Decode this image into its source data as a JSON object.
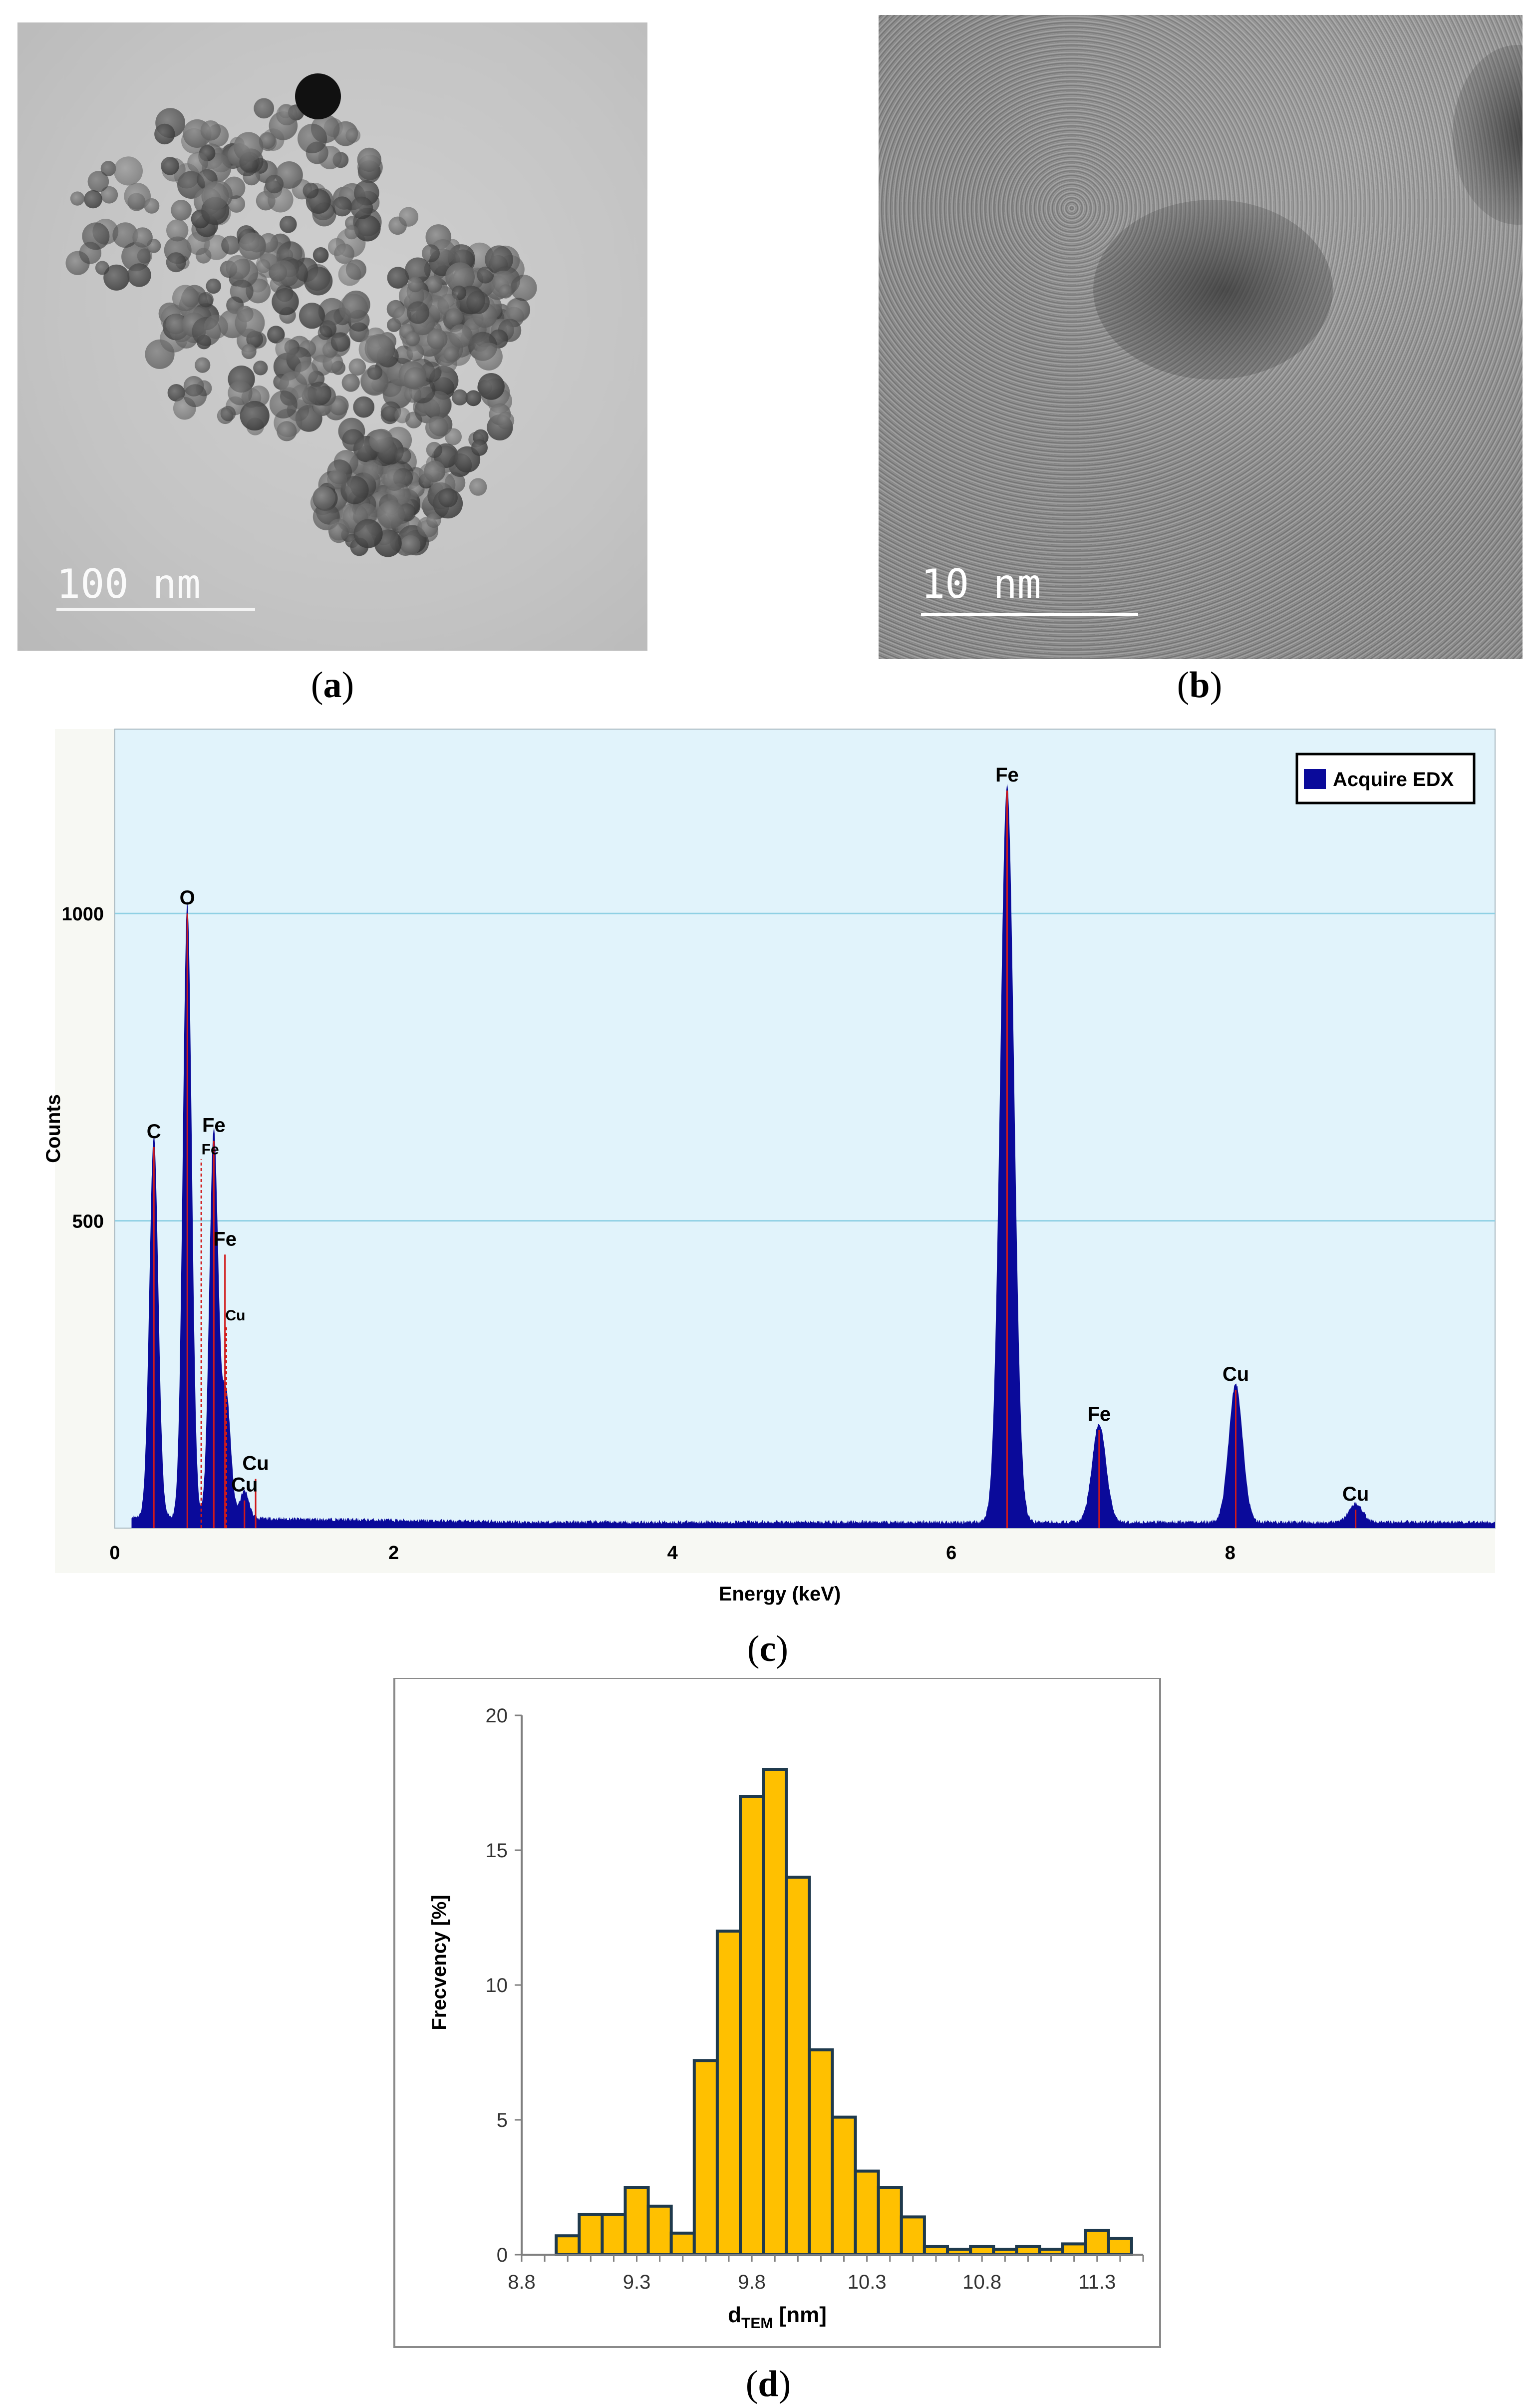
{
  "panel_a": {
    "caption_open": "(",
    "caption_letter": "a",
    "caption_close": ")",
    "scale_label": "100 nm"
  },
  "panel_b": {
    "caption_open": "(",
    "caption_letter": "b",
    "caption_close": ")",
    "scale_label": "10 nm"
  },
  "panel_c": {
    "caption_open": "(",
    "caption_letter": "c",
    "caption_close": ")"
  },
  "panel_d": {
    "caption_open": "(",
    "caption_letter": "d",
    "caption_close": ")"
  },
  "colors": {
    "edx_fill": "#0a0a9a",
    "edx_bg": "#e1f3fb",
    "edx_grid": "#8fd0e4",
    "edx_marker": "#d11a1a",
    "hist_fill": "#ffc000",
    "hist_edge": "#1f3a4d"
  },
  "chart_data": [
    {
      "type": "area",
      "title": "",
      "xlabel": "Energy (keV)",
      "ylabel": "Counts",
      "xlim": [
        0,
        9.9
      ],
      "ylim": [
        0,
        1300
      ],
      "x_ticks": [
        0,
        2,
        4,
        6,
        8
      ],
      "y_ticks": [
        500,
        1000
      ],
      "grid": "horizontal",
      "legend": {
        "position": "top-right",
        "entries": [
          "Acquire EDX"
        ]
      },
      "series": [
        {
          "name": "Acquire EDX",
          "peaks": [
            {
              "x": 0.28,
              "y": 620
            },
            {
              "x": 0.52,
              "y": 1000
            },
            {
              "x": 0.71,
              "y": 630
            },
            {
              "x": 0.8,
              "y": 200
            },
            {
              "x": 0.93,
              "y": 45
            },
            {
              "x": 6.4,
              "y": 1200
            },
            {
              "x": 7.06,
              "y": 160
            },
            {
              "x": 8.04,
              "y": 225
            },
            {
              "x": 8.9,
              "y": 30
            }
          ],
          "background": 10
        }
      ],
      "annotations": [
        {
          "text": "C",
          "x": 0.28,
          "y": 620,
          "size": "large",
          "marker": true
        },
        {
          "text": "O",
          "x": 0.52,
          "y": 1000,
          "size": "large",
          "marker": true
        },
        {
          "text": "Fe",
          "x": 0.62,
          "y": 600,
          "size": "small",
          "marker": true
        },
        {
          "text": "Fe",
          "x": 0.71,
          "y": 630,
          "size": "large",
          "marker": true
        },
        {
          "text": "Fe",
          "x": 0.79,
          "y": 445,
          "size": "large",
          "marker": true
        },
        {
          "text": "Cu",
          "x": 0.8,
          "y": 330,
          "size": "small",
          "marker": true
        },
        {
          "text": "Cu",
          "x": 0.93,
          "y": 45,
          "size": "large",
          "marker": true
        },
        {
          "text": "Cu",
          "x": 1.01,
          "y": 80,
          "size": "large",
          "marker": true
        },
        {
          "text": "Fe",
          "x": 6.4,
          "y": 1200,
          "size": "large",
          "marker": true
        },
        {
          "text": "Fe",
          "x": 7.06,
          "y": 160,
          "size": "large",
          "marker": true
        },
        {
          "text": "Cu",
          "x": 8.04,
          "y": 225,
          "size": "large",
          "marker": true
        },
        {
          "text": "Cu",
          "x": 8.9,
          "y": 30,
          "size": "large",
          "marker": true
        }
      ]
    },
    {
      "type": "bar",
      "title": "",
      "xlabel": "dTEM [nm]",
      "xlabel_main": "d",
      "xlabel_sub": "TEM",
      "xlabel_unit": " [nm]",
      "ylabel": "Frecvency [%]",
      "xlim": [
        8.8,
        11.5
      ],
      "ylim": [
        0,
        20
      ],
      "x_ticks": [
        8.8,
        9.3,
        9.8,
        10.3,
        10.8,
        11.3
      ],
      "y_ticks": [
        0,
        5,
        10,
        15,
        20
      ],
      "bin_width": 0.1,
      "x": [
        9.0,
        9.1,
        9.2,
        9.3,
        9.4,
        9.5,
        9.6,
        9.7,
        9.8,
        9.9,
        10.0,
        10.1,
        10.2,
        10.3,
        10.4,
        10.5,
        10.6,
        10.7,
        10.8,
        10.9,
        11.0,
        11.1,
        11.2,
        11.3,
        11.4
      ],
      "values": [
        0.7,
        1.5,
        1.5,
        2.5,
        1.8,
        0.8,
        7.2,
        12.0,
        17.0,
        18.0,
        14.0,
        7.6,
        5.1,
        3.1,
        2.5,
        1.4,
        0.3,
        0.2,
        0.3,
        0.2,
        0.3,
        0.2,
        0.4,
        0.9,
        0.6
      ]
    }
  ]
}
